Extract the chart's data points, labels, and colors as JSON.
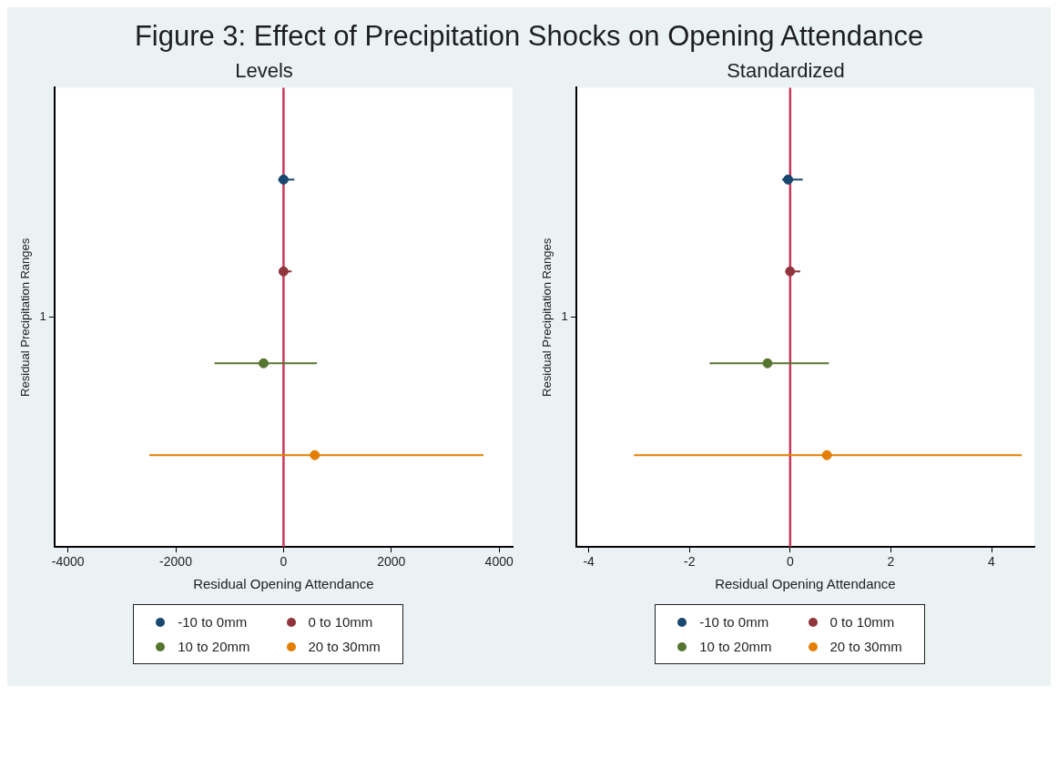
{
  "chart_data": [
    {
      "type": "scatter",
      "title": "Figure 3: Effect of Precipitation Shocks on Opening Attendance",
      "subtitle": "Levels",
      "xlabel": "Residual Opening Attendance",
      "ylabel": "Residual Precipitation Ranges",
      "orientation": "horizontal",
      "categories": [
        "1"
      ],
      "xlim": [
        -4250,
        4250
      ],
      "xticks": [
        -4000,
        -2000,
        0,
        2000,
        4000
      ],
      "grid": false,
      "legend": "bottom",
      "marker": "circle",
      "series": [
        {
          "name": "-10 to 0mm",
          "color": "#1a476f",
          "values": [
            0
          ],
          "errors": [
            [
              -100,
              200
            ]
          ]
        },
        {
          "name": "0 to 10mm",
          "color": "#90353b",
          "values": [
            0
          ],
          "errors": [
            [
              -20,
              150
            ]
          ]
        },
        {
          "name": "10 to 20mm",
          "color": "#55752f",
          "values": [
            -370
          ],
          "errors": [
            [
              -1280,
              620
            ]
          ]
        },
        {
          "name": "20 to 30mm",
          "color": "#e37e00",
          "values": [
            580
          ],
          "errors": [
            [
              -2490,
              3710
            ]
          ]
        }
      ],
      "ref_lines": [
        {
          "axis": "x",
          "value": 0,
          "color": "#c8375a"
        }
      ]
    },
    {
      "type": "scatter",
      "subtitle": "Standardized",
      "xlabel": "Residual Opening Attendance",
      "ylabel": "Residual Precipitation Ranges",
      "orientation": "horizontal",
      "categories": [
        "1"
      ],
      "xlim": [
        -4.25,
        4.85
      ],
      "xticks": [
        -4,
        -2,
        0,
        2,
        4
      ],
      "grid": false,
      "legend": "bottom",
      "marker": "circle",
      "series": [
        {
          "name": "-10 to 0mm",
          "color": "#1a476f",
          "values": [
            -0.04
          ],
          "errors": [
            [
              -0.16,
              0.25
            ]
          ]
        },
        {
          "name": "0 to 10mm",
          "color": "#90353b",
          "values": [
            0
          ],
          "errors": [
            [
              -0.05,
              0.2
            ]
          ]
        },
        {
          "name": "10 to 20mm",
          "color": "#55752f",
          "values": [
            -0.45
          ],
          "errors": [
            [
              -1.6,
              0.77
            ]
          ]
        },
        {
          "name": "20 to 30mm",
          "color": "#e37e00",
          "values": [
            0.73
          ],
          "errors": [
            [
              -3.1,
              4.6
            ]
          ]
        }
      ],
      "ref_lines": [
        {
          "axis": "x",
          "value": 0,
          "color": "#c8375a"
        }
      ]
    }
  ]
}
